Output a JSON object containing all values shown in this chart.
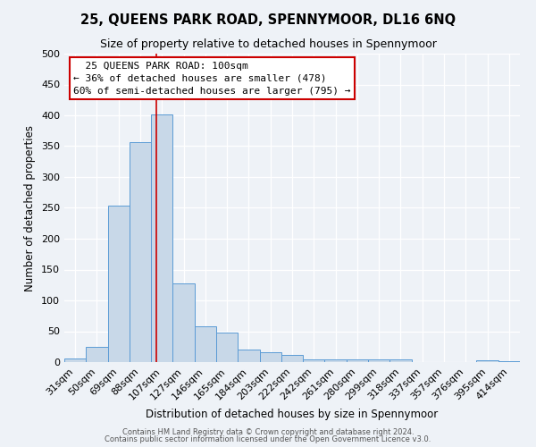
{
  "title": "25, QUEENS PARK ROAD, SPENNYMOOR, DL16 6NQ",
  "subtitle": "Size of property relative to detached houses in Spennymoor",
  "xlabel": "Distribution of detached houses by size in Spennymoor",
  "ylabel": "Number of detached properties",
  "footer_line1": "Contains HM Land Registry data © Crown copyright and database right 2024.",
  "footer_line2": "Contains public sector information licensed under the Open Government Licence v3.0.",
  "bin_labels": [
    "31sqm",
    "50sqm",
    "69sqm",
    "88sqm",
    "107sqm",
    "127sqm",
    "146sqm",
    "165sqm",
    "184sqm",
    "203sqm",
    "222sqm",
    "242sqm",
    "261sqm",
    "280sqm",
    "299sqm",
    "318sqm",
    "337sqm",
    "357sqm",
    "376sqm",
    "395sqm",
    "414sqm"
  ],
  "bin_values": [
    6,
    24,
    254,
    356,
    402,
    128,
    58,
    48,
    20,
    16,
    12,
    4,
    4,
    4,
    5,
    5,
    0,
    0,
    0,
    3,
    2
  ],
  "bar_color": "#c8d8e8",
  "bar_edge_color": "#5b9bd5",
  "red_line_bin_index": 3.75,
  "annotation_title": "25 QUEENS PARK ROAD: 100sqm",
  "annotation_line1": "← 36% of detached houses are smaller (478)",
  "annotation_line2": "60% of semi-detached houses are larger (795) →",
  "ylim": [
    0,
    500
  ],
  "yticks": [
    0,
    50,
    100,
    150,
    200,
    250,
    300,
    350,
    400,
    450,
    500
  ],
  "bar_color_light": "#dce8f3",
  "background_color": "#eef2f7",
  "grid_color": "#d0d8e4",
  "title_fontsize": 10.5,
  "subtitle_fontsize": 9,
  "xlabel_fontsize": 8.5,
  "ylabel_fontsize": 8.5,
  "tick_fontsize": 8,
  "annot_fontsize": 8
}
